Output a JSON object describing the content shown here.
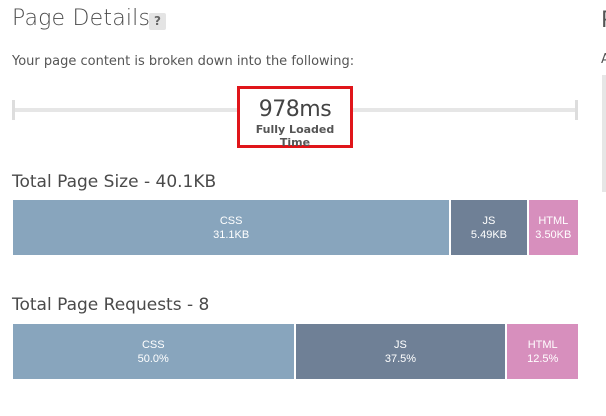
{
  "header": {
    "title": "Page Details",
    "help_icon_label": "?",
    "subtitle": "Your page content is broken down into the following:"
  },
  "timeline": {
    "value": "978ms",
    "label": "Fully Loaded Time"
  },
  "page_size": {
    "title": "Total Page Size - 40.1KB",
    "segments": [
      {
        "name": "CSS",
        "value": "31.1KB",
        "kb": 31.1,
        "color": "#88a5bd"
      },
      {
        "name": "JS",
        "value": "5.49KB",
        "kb": 5.49,
        "color": "#6f8096"
      },
      {
        "name": "HTML",
        "value": "3.50KB",
        "kb": 3.5,
        "color": "#d78fbd"
      }
    ]
  },
  "page_requests": {
    "title": "Total Page Requests - 8",
    "segments": [
      {
        "name": "CSS",
        "value": "50.0%",
        "percent": 50.0,
        "color": "#88a5bd"
      },
      {
        "name": "JS",
        "value": "37.5%",
        "percent": 37.5,
        "color": "#6f8096"
      },
      {
        "name": "HTML",
        "value": "12.5%",
        "percent": 12.5,
        "color": "#d78fbd"
      }
    ]
  },
  "right_panel": {
    "title_fragment": "P",
    "text_fragment": "A"
  },
  "accent": {
    "highlight_border": "#e0151a"
  }
}
